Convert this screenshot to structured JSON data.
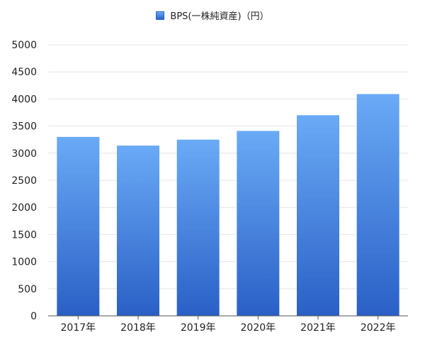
{
  "chart_data": {
    "type": "bar",
    "categories": [
      "2017年",
      "2018年",
      "2019年",
      "2020年",
      "2021年",
      "2022年"
    ],
    "series": [
      {
        "name": "BPS(一株純資産)（円）",
        "values": [
          3300,
          3140,
          3250,
          3410,
          3700,
          4090
        ]
      }
    ],
    "ylim": [
      0,
      5000
    ],
    "yticks": [
      0,
      500,
      1000,
      1500,
      2000,
      2500,
      3000,
      3500,
      4000,
      4500,
      5000
    ],
    "grid": true,
    "legend_position": "top-center",
    "colors": {
      "bar_top": "#6aaaf6",
      "bar_bottom": "#2a60c6",
      "grid": "#e6e6e6",
      "axis": "#555555"
    }
  }
}
